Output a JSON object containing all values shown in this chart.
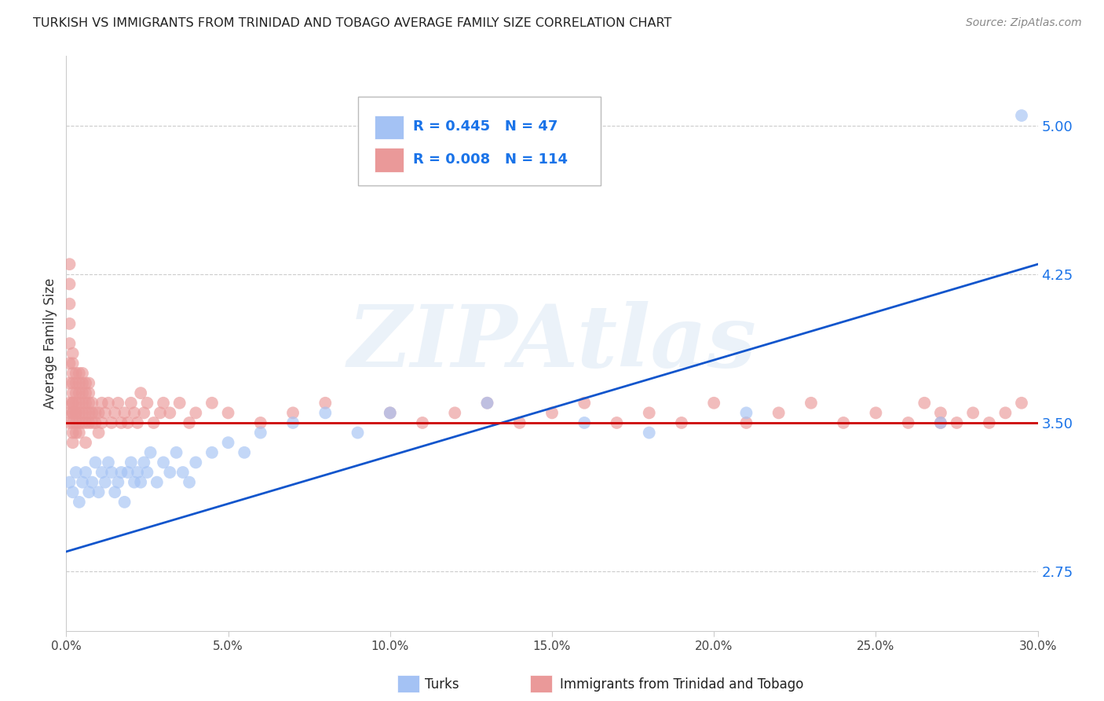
{
  "title": "TURKISH VS IMMIGRANTS FROM TRINIDAD AND TOBAGO AVERAGE FAMILY SIZE CORRELATION CHART",
  "source": "Source: ZipAtlas.com",
  "ylabel": "Average Family Size",
  "watermark": "ZIPAtlas",
  "xlim": [
    0.0,
    0.3
  ],
  "ylim": [
    2.45,
    5.35
  ],
  "yticks_right": [
    2.75,
    3.5,
    4.25,
    5.0
  ],
  "xticks": [
    0.0,
    0.05,
    0.1,
    0.15,
    0.2,
    0.25,
    0.3
  ],
  "xtick_labels": [
    "0.0%",
    "5.0%",
    "10.0%",
    "15.0%",
    "20.0%",
    "25.0%",
    "30.0%"
  ],
  "blue_R": "0.445",
  "blue_N": "47",
  "pink_R": "0.008",
  "pink_N": "114",
  "legend_label_blue": "Turks",
  "legend_label_pink": "Immigrants from Trinidad and Tobago",
  "blue_color": "#a4c2f4",
  "pink_color": "#ea9999",
  "blue_line_color": "#1155cc",
  "pink_line_color": "#cc0000",
  "blue_scatter_x": [
    0.001,
    0.002,
    0.003,
    0.004,
    0.005,
    0.006,
    0.007,
    0.008,
    0.009,
    0.01,
    0.011,
    0.012,
    0.013,
    0.014,
    0.015,
    0.016,
    0.017,
    0.018,
    0.019,
    0.02,
    0.021,
    0.022,
    0.023,
    0.024,
    0.025,
    0.026,
    0.028,
    0.03,
    0.032,
    0.034,
    0.036,
    0.038,
    0.04,
    0.045,
    0.05,
    0.055,
    0.06,
    0.07,
    0.08,
    0.09,
    0.1,
    0.13,
    0.16,
    0.18,
    0.21,
    0.27,
    0.295
  ],
  "blue_scatter_y": [
    3.2,
    3.15,
    3.25,
    3.1,
    3.2,
    3.25,
    3.15,
    3.2,
    3.3,
    3.15,
    3.25,
    3.2,
    3.3,
    3.25,
    3.15,
    3.2,
    3.25,
    3.1,
    3.25,
    3.3,
    3.2,
    3.25,
    3.2,
    3.3,
    3.25,
    3.35,
    3.2,
    3.3,
    3.25,
    3.35,
    3.25,
    3.2,
    3.3,
    3.35,
    3.4,
    3.35,
    3.45,
    3.5,
    3.55,
    3.45,
    3.55,
    3.6,
    3.5,
    3.45,
    3.55,
    3.5,
    5.05
  ],
  "pink_scatter_x": [
    0.001,
    0.001,
    0.001,
    0.001,
    0.001,
    0.001,
    0.001,
    0.001,
    0.001,
    0.001,
    0.002,
    0.002,
    0.002,
    0.002,
    0.002,
    0.002,
    0.002,
    0.002,
    0.002,
    0.002,
    0.002,
    0.002,
    0.003,
    0.003,
    0.003,
    0.003,
    0.003,
    0.003,
    0.003,
    0.003,
    0.004,
    0.004,
    0.004,
    0.004,
    0.004,
    0.004,
    0.004,
    0.005,
    0.005,
    0.005,
    0.005,
    0.005,
    0.005,
    0.006,
    0.006,
    0.006,
    0.006,
    0.006,
    0.006,
    0.007,
    0.007,
    0.007,
    0.007,
    0.007,
    0.008,
    0.008,
    0.008,
    0.009,
    0.009,
    0.01,
    0.01,
    0.011,
    0.011,
    0.012,
    0.013,
    0.014,
    0.015,
    0.016,
    0.017,
    0.018,
    0.019,
    0.02,
    0.021,
    0.022,
    0.023,
    0.024,
    0.025,
    0.027,
    0.029,
    0.03,
    0.032,
    0.035,
    0.038,
    0.04,
    0.045,
    0.05,
    0.06,
    0.07,
    0.08,
    0.1,
    0.11,
    0.12,
    0.13,
    0.14,
    0.15,
    0.16,
    0.17,
    0.18,
    0.19,
    0.2,
    0.21,
    0.22,
    0.23,
    0.24,
    0.25,
    0.26,
    0.265,
    0.27,
    0.275,
    0.28,
    0.285,
    0.29,
    0.295,
    0.27
  ],
  "pink_scatter_y": [
    3.5,
    3.55,
    3.6,
    3.7,
    3.8,
    3.9,
    4.0,
    4.1,
    4.2,
    4.3,
    3.45,
    3.5,
    3.55,
    3.6,
    3.65,
    3.7,
    3.75,
    3.8,
    3.85,
    3.55,
    3.4,
    3.6,
    3.5,
    3.55,
    3.6,
    3.65,
    3.7,
    3.75,
    3.45,
    3.55,
    3.5,
    3.55,
    3.6,
    3.65,
    3.7,
    3.75,
    3.45,
    3.5,
    3.55,
    3.6,
    3.65,
    3.7,
    3.75,
    3.5,
    3.55,
    3.6,
    3.65,
    3.4,
    3.7,
    3.5,
    3.55,
    3.6,
    3.65,
    3.7,
    3.5,
    3.55,
    3.6,
    3.5,
    3.55,
    3.45,
    3.55,
    3.5,
    3.6,
    3.55,
    3.6,
    3.5,
    3.55,
    3.6,
    3.5,
    3.55,
    3.5,
    3.6,
    3.55,
    3.5,
    3.65,
    3.55,
    3.6,
    3.5,
    3.55,
    3.6,
    3.55,
    3.6,
    3.5,
    3.55,
    3.6,
    3.55,
    3.5,
    3.55,
    3.6,
    3.55,
    3.5,
    3.55,
    3.6,
    3.5,
    3.55,
    3.6,
    3.5,
    3.55,
    3.5,
    3.6,
    3.5,
    3.55,
    3.6,
    3.5,
    3.55,
    3.5,
    3.6,
    3.55,
    3.5,
    3.55,
    3.5,
    3.55,
    3.6,
    3.5
  ],
  "blue_line_x": [
    0.0,
    0.3
  ],
  "blue_line_y": [
    2.85,
    4.3
  ],
  "pink_line_x": [
    0.0,
    0.3
  ],
  "pink_line_y": [
    3.5,
    3.5
  ],
  "background_color": "#ffffff",
  "grid_color": "#cccccc",
  "title_color": "#222222",
  "source_color": "#888888",
  "legend_text_color": "#1a73e8",
  "right_axis_color": "#1a73e8"
}
